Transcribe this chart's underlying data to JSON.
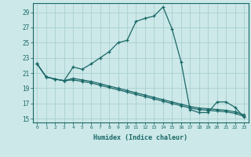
{
  "xlabel": "Humidex (Indice chaleur)",
  "background_color": "#cce8e8",
  "grid_color": "#aacfcf",
  "line_color": "#1a6868",
  "xlim": [
    -0.5,
    23.5
  ],
  "ylim": [
    14.5,
    30.2
  ],
  "xticks": [
    0,
    1,
    2,
    3,
    4,
    5,
    6,
    7,
    8,
    9,
    10,
    11,
    12,
    13,
    14,
    15,
    16,
    17,
    18,
    19,
    20,
    21,
    22,
    23
  ],
  "yticks": [
    15,
    17,
    19,
    21,
    23,
    25,
    27,
    29
  ],
  "line1_x": [
    0,
    1,
    2,
    3,
    4,
    5,
    6,
    7,
    8,
    9,
    10,
    11,
    12,
    13,
    14,
    15,
    16,
    17,
    18,
    19,
    20,
    21,
    22,
    23
  ],
  "line1_y": [
    22.2,
    20.5,
    20.2,
    20.0,
    21.8,
    21.5,
    22.2,
    23.0,
    23.8,
    25.0,
    25.3,
    27.8,
    28.2,
    28.5,
    29.7,
    26.8,
    22.5,
    16.2,
    15.8,
    15.8,
    17.2,
    17.2,
    16.5,
    15.2
  ],
  "line2_x": [
    0,
    1,
    2,
    3,
    4,
    5,
    6,
    7,
    8,
    9,
    10,
    11,
    12,
    13,
    14,
    15,
    16,
    17,
    18,
    19,
    20,
    21,
    22,
    23
  ],
  "line2_y": [
    22.2,
    20.5,
    20.2,
    20.0,
    20.3,
    20.1,
    19.9,
    19.6,
    19.3,
    19.0,
    18.7,
    18.4,
    18.1,
    17.8,
    17.5,
    17.2,
    16.9,
    16.6,
    16.4,
    16.3,
    16.2,
    16.1,
    15.9,
    15.5
  ],
  "line3_x": [
    0,
    1,
    2,
    3,
    4,
    5,
    6,
    7,
    8,
    9,
    10,
    11,
    12,
    13,
    14,
    15,
    16,
    17,
    18,
    19,
    20,
    21,
    22,
    23
  ],
  "line3_y": [
    22.2,
    20.5,
    20.2,
    20.0,
    20.1,
    19.9,
    19.7,
    19.4,
    19.1,
    18.8,
    18.5,
    18.2,
    17.9,
    17.6,
    17.3,
    17.0,
    16.7,
    16.4,
    16.2,
    16.1,
    16.0,
    15.9,
    15.7,
    15.3
  ],
  "marker_size": 3.5,
  "line_width": 0.9
}
